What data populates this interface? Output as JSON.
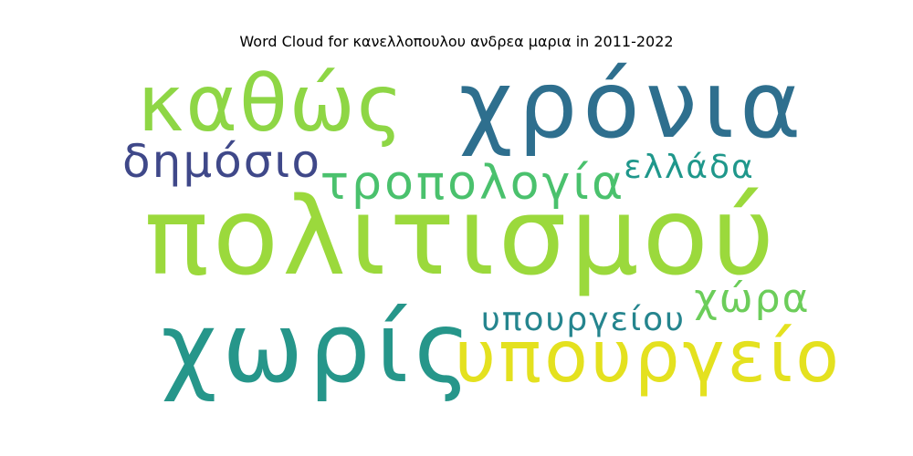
{
  "chart_data": {
    "type": "wordcloud",
    "title": "Word Cloud for κανελλοπουλου ανδρεα μαρια in 2011-2022",
    "background": "#ffffff",
    "colormap": "viridis",
    "words": [
      {
        "text": "πολιτισμού",
        "rank": 1,
        "color": "#9bd93c"
      },
      {
        "text": "χρόνια",
        "rank": 2,
        "color": "#2e6f8e"
      },
      {
        "text": "καθώς",
        "rank": 3,
        "color": "#8ed645"
      },
      {
        "text": "χωρίς",
        "rank": 4,
        "color": "#26968a"
      },
      {
        "text": "υπουργείο",
        "rank": 5,
        "color": "#e4e11f"
      },
      {
        "text": "τροπολογία",
        "rank": 6,
        "color": "#4ac16d"
      },
      {
        "text": "δημόσιο",
        "rank": 7,
        "color": "#3f4889"
      },
      {
        "text": "υπουργείου",
        "rank": 8,
        "color": "#25858e"
      },
      {
        "text": "χώρα",
        "rank": 9,
        "color": "#6ccd5a"
      },
      {
        "text": "ελλάδα",
        "rank": 10,
        "color": "#1f978b"
      }
    ]
  }
}
